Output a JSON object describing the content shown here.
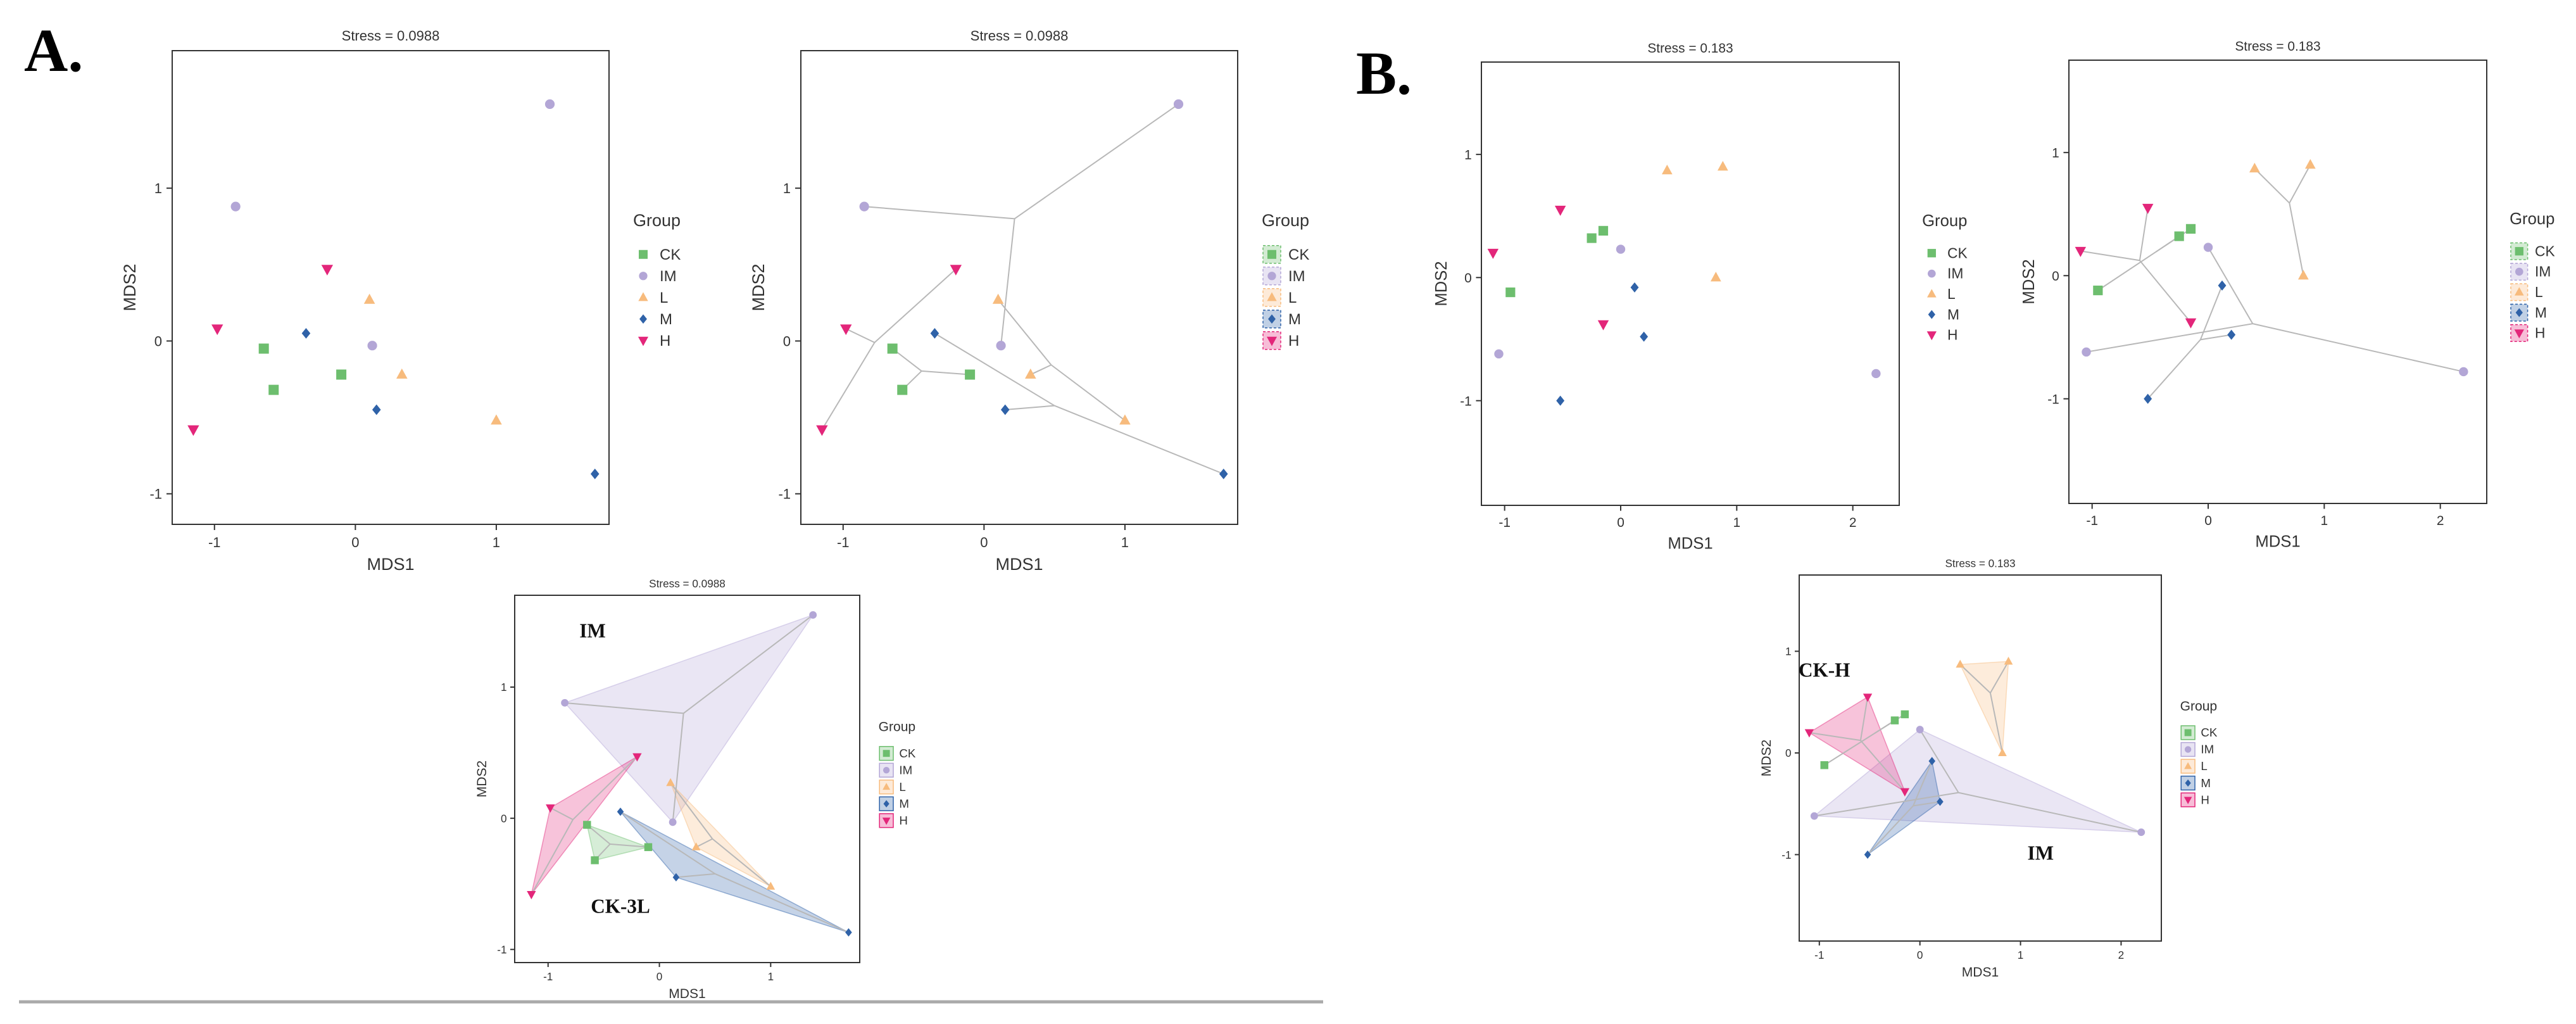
{
  "panel_labels": {
    "a": "A.",
    "b": "B."
  },
  "groups": [
    {
      "name": "CK",
      "color": "#6DBE6E",
      "shape": "square"
    },
    {
      "name": "IM",
      "color": "#B3A6D6",
      "shape": "circle"
    },
    {
      "name": "L",
      "color": "#F7BB7D",
      "shape": "triangle"
    },
    {
      "name": "M",
      "color": "#2F62A8",
      "shape": "diamond"
    },
    {
      "name": "H",
      "color": "#E3267A",
      "shape": "triangle-down"
    }
  ],
  "chart_data": [
    {
      "id": "A1",
      "type": "scatter",
      "variant": "plain",
      "title": "Stress = 0.0988",
      "xlabel": "MDS1",
      "ylabel": "MDS2",
      "xlim": [
        -1.3,
        1.8
      ],
      "ylim": [
        -1.2,
        1.9
      ],
      "xticks": [
        -1,
        0,
        1
      ],
      "yticks": [
        -1,
        0,
        1
      ],
      "legend_title": "Group",
      "legend_position": "right",
      "series": [
        {
          "name": "CK",
          "points": [
            [
              -0.65,
              -0.05
            ],
            [
              -0.58,
              -0.32
            ],
            [
              -0.1,
              -0.22
            ]
          ]
        },
        {
          "name": "IM",
          "points": [
            [
              -0.85,
              0.88
            ],
            [
              0.12,
              -0.03
            ],
            [
              1.38,
              1.55
            ]
          ]
        },
        {
          "name": "L",
          "points": [
            [
              0.1,
              0.27
            ],
            [
              0.33,
              -0.22
            ],
            [
              1.0,
              -0.52
            ]
          ]
        },
        {
          "name": "M",
          "points": [
            [
              -0.35,
              0.05
            ],
            [
              0.15,
              -0.45
            ],
            [
              1.7,
              -0.87
            ]
          ]
        },
        {
          "name": "H",
          "points": [
            [
              -1.15,
              -0.58
            ],
            [
              -0.98,
              0.08
            ],
            [
              -0.2,
              0.47
            ]
          ]
        }
      ]
    },
    {
      "id": "A2",
      "type": "scatter",
      "variant": "spider",
      "title": "Stress = 0.0988",
      "xlabel": "MDS1",
      "ylabel": "MDS2",
      "xlim": [
        -1.3,
        1.8
      ],
      "ylim": [
        -1.2,
        1.9
      ],
      "xticks": [
        -1,
        0,
        1
      ],
      "yticks": [
        -1,
        0,
        1
      ],
      "legend_title": "Group",
      "legend_position": "right",
      "series": [
        {
          "name": "CK",
          "points": [
            [
              -0.65,
              -0.05
            ],
            [
              -0.58,
              -0.32
            ],
            [
              -0.1,
              -0.22
            ]
          ]
        },
        {
          "name": "IM",
          "points": [
            [
              -0.85,
              0.88
            ],
            [
              0.12,
              -0.03
            ],
            [
              1.38,
              1.55
            ]
          ]
        },
        {
          "name": "L",
          "points": [
            [
              0.1,
              0.27
            ],
            [
              0.33,
              -0.22
            ],
            [
              1.0,
              -0.52
            ]
          ]
        },
        {
          "name": "M",
          "points": [
            [
              -0.35,
              0.05
            ],
            [
              0.15,
              -0.45
            ],
            [
              1.7,
              -0.87
            ]
          ]
        },
        {
          "name": "H",
          "points": [
            [
              -1.15,
              -0.58
            ],
            [
              -0.98,
              0.08
            ],
            [
              -0.2,
              0.47
            ]
          ]
        }
      ]
    },
    {
      "id": "A3",
      "type": "scatter",
      "variant": "hull",
      "title": "Stress = 0.0988",
      "xlabel": "MDS1",
      "ylabel": "MDS2",
      "xlim": [
        -1.3,
        1.8
      ],
      "ylim": [
        -1.1,
        1.7
      ],
      "xticks": [
        -1,
        0,
        1
      ],
      "yticks": [
        -1,
        0,
        1
      ],
      "legend_title": "Group",
      "legend_position": "right",
      "annotations": [
        {
          "text": "IM",
          "at": [
            -0.6,
            1.38
          ]
        },
        {
          "text": "CK-3L",
          "at": [
            -0.35,
            -0.72
          ]
        }
      ],
      "series": [
        {
          "name": "CK",
          "points": [
            [
              -0.65,
              -0.05
            ],
            [
              -0.58,
              -0.32
            ],
            [
              -0.1,
              -0.22
            ]
          ]
        },
        {
          "name": "IM",
          "points": [
            [
              -0.85,
              0.88
            ],
            [
              0.12,
              -0.03
            ],
            [
              1.38,
              1.55
            ]
          ]
        },
        {
          "name": "L",
          "points": [
            [
              0.1,
              0.27
            ],
            [
              0.33,
              -0.22
            ],
            [
              1.0,
              -0.52
            ]
          ]
        },
        {
          "name": "M",
          "points": [
            [
              -0.35,
              0.05
            ],
            [
              0.15,
              -0.45
            ],
            [
              1.7,
              -0.87
            ]
          ]
        },
        {
          "name": "H",
          "points": [
            [
              -1.15,
              -0.58
            ],
            [
              -0.98,
              0.08
            ],
            [
              -0.2,
              0.47
            ]
          ]
        }
      ]
    },
    {
      "id": "B1",
      "type": "scatter",
      "variant": "plain",
      "title": "Stress = 0.183",
      "xlabel": "MDS1",
      "ylabel": "MDS2",
      "xlim": [
        -1.2,
        2.4
      ],
      "ylim": [
        -1.85,
        1.75
      ],
      "xticks": [
        -1,
        0,
        1,
        2
      ],
      "yticks": [
        -1,
        0,
        1
      ],
      "legend_title": "Group",
      "legend_position": "right",
      "series": [
        {
          "name": "CK",
          "points": [
            [
              -0.95,
              -0.12
            ],
            [
              -0.25,
              0.32
            ],
            [
              -0.15,
              0.38
            ]
          ]
        },
        {
          "name": "IM",
          "points": [
            [
              -1.05,
              -0.62
            ],
            [
              0.0,
              0.23
            ],
            [
              2.2,
              -0.78
            ]
          ]
        },
        {
          "name": "L",
          "points": [
            [
              0.4,
              0.87
            ],
            [
              0.88,
              0.9
            ],
            [
              0.82,
              0.0
            ]
          ]
        },
        {
          "name": "M",
          "points": [
            [
              -0.52,
              -1.0
            ],
            [
              0.12,
              -0.08
            ],
            [
              0.2,
              -0.48
            ]
          ]
        },
        {
          "name": "H",
          "points": [
            [
              -1.1,
              0.2
            ],
            [
              -0.52,
              0.55
            ],
            [
              -0.15,
              -0.38
            ]
          ]
        }
      ]
    },
    {
      "id": "B2",
      "type": "scatter",
      "variant": "spider",
      "title": "Stress = 0.183",
      "xlabel": "MDS1",
      "ylabel": "MDS2",
      "xlim": [
        -1.2,
        2.4
      ],
      "ylim": [
        -1.85,
        1.75
      ],
      "xticks": [
        -1,
        0,
        1,
        2
      ],
      "yticks": [
        -1,
        0,
        1
      ],
      "legend_title": "Group",
      "legend_position": "right",
      "series": [
        {
          "name": "CK",
          "points": [
            [
              -0.95,
              -0.12
            ],
            [
              -0.25,
              0.32
            ],
            [
              -0.15,
              0.38
            ]
          ]
        },
        {
          "name": "IM",
          "points": [
            [
              -1.05,
              -0.62
            ],
            [
              0.0,
              0.23
            ],
            [
              2.2,
              -0.78
            ]
          ]
        },
        {
          "name": "L",
          "points": [
            [
              0.4,
              0.87
            ],
            [
              0.88,
              0.9
            ],
            [
              0.82,
              0.0
            ]
          ]
        },
        {
          "name": "M",
          "points": [
            [
              -0.52,
              -1.0
            ],
            [
              0.12,
              -0.08
            ],
            [
              0.2,
              -0.48
            ]
          ]
        },
        {
          "name": "H",
          "points": [
            [
              -1.1,
              0.2
            ],
            [
              -0.52,
              0.55
            ],
            [
              -0.15,
              -0.38
            ]
          ]
        }
      ]
    },
    {
      "id": "B3",
      "type": "scatter",
      "variant": "hull",
      "title": "Stress = 0.183",
      "xlabel": "MDS1",
      "ylabel": "MDS2",
      "xlim": [
        -1.2,
        2.4
      ],
      "ylim": [
        -1.85,
        1.75
      ],
      "xticks": [
        -1,
        0,
        1,
        2
      ],
      "yticks": [
        -1,
        0,
        1
      ],
      "legend_title": "Group",
      "legend_position": "right",
      "annotations": [
        {
          "text": "CK-H",
          "at": [
            -0.95,
            0.75
          ]
        },
        {
          "text": "IM",
          "at": [
            1.2,
            -1.05
          ]
        }
      ],
      "series": [
        {
          "name": "CK",
          "points": [
            [
              -0.95,
              -0.12
            ],
            [
              -0.25,
              0.32
            ],
            [
              -0.15,
              0.38
            ]
          ]
        },
        {
          "name": "IM",
          "points": [
            [
              -1.05,
              -0.62
            ],
            [
              0.0,
              0.23
            ],
            [
              2.2,
              -0.78
            ]
          ]
        },
        {
          "name": "L",
          "points": [
            [
              0.4,
              0.87
            ],
            [
              0.88,
              0.9
            ],
            [
              0.82,
              0.0
            ]
          ]
        },
        {
          "name": "M",
          "points": [
            [
              -0.52,
              -1.0
            ],
            [
              0.12,
              -0.08
            ],
            [
              0.2,
              -0.48
            ]
          ]
        },
        {
          "name": "H",
          "points": [
            [
              -1.1,
              0.2
            ],
            [
              -0.52,
              0.55
            ],
            [
              -0.15,
              -0.38
            ]
          ]
        }
      ]
    }
  ]
}
